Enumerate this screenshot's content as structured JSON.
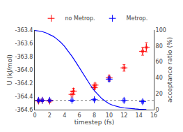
{
  "chart_data": {
    "type": "scatter",
    "title": "",
    "xlabel": "timestep (fs)",
    "ylabel": "U (kJ/mol)",
    "y2label": "acceptance ratio (%)",
    "xlim": [
      0,
      16
    ],
    "xticks": [
      0,
      2,
      4,
      6,
      8,
      10,
      12,
      14,
      16
    ],
    "ylim": [
      -364.6,
      -363.4
    ],
    "yticks": [
      -364.6,
      -364.4,
      -364.2,
      {
        "value": -364.0,
        "label": "-364.0"
      },
      -363.8,
      -363.6,
      -363.4
    ],
    "y2lim": [
      0,
      100
    ],
    "y2ticks": [
      0,
      20,
      40,
      60,
      80,
      100
    ],
    "grid": false,
    "legend": "top",
    "hlines": [
      {
        "y": -364.46,
        "color": "gray",
        "line_style": "dotted"
      }
    ],
    "series": [
      {
        "name": "no Metrop.",
        "type": "scatter",
        "color": "red",
        "marker": "+",
        "x": [
          0.5,
          1.0,
          2.0,
          5.0,
          5.2,
          8.0,
          8.1,
          10.0,
          12.0,
          14.5,
          15.0
        ],
        "values": [
          -364.47,
          -364.46,
          -364.47,
          -364.37,
          -364.32,
          -364.27,
          -364.23,
          -364.12,
          -363.97,
          -363.72,
          -363.66
        ],
        "yerr": [
          0.025,
          0.02,
          0.02,
          0.04,
          0.04,
          0.03,
          0.03,
          0.04,
          0.05,
          0.06,
          0.07
        ],
        "xerr": [
          0.15,
          0.15,
          0.15,
          0.15,
          0.15,
          0.15,
          0.15,
          0.15,
          0.15,
          0.15,
          0.15
        ]
      },
      {
        "name": "Metrop.",
        "type": "scatter",
        "color": "blue",
        "marker": "+",
        "x": [
          0.5,
          1.0,
          2.0,
          5.0,
          8.0,
          10.0,
          12.0,
          14.5
        ],
        "values": [
          -364.46,
          -364.46,
          -364.46,
          -364.46,
          -364.45,
          -364.14,
          -364.46,
          -364.48
        ],
        "yerr": [
          0.02,
          0.02,
          0.02,
          0.02,
          0.02,
          0.035,
          0.025,
          0.025
        ],
        "xerr": [
          0.15,
          0.15,
          0.15,
          0.15,
          0.15,
          0.15,
          0.15,
          0.15
        ]
      },
      {
        "type": "line",
        "color": "blue",
        "line_style": "solid",
        "axis": "y2",
        "x": [
          0.0,
          0.3,
          0.6,
          1.0,
          1.5,
          2.0,
          2.5,
          3.0,
          3.5,
          4.0,
          4.5,
          5.0,
          5.5,
          6.0,
          6.5,
          7.0,
          7.5,
          8.0,
          8.5,
          9.0,
          9.5,
          10.0,
          10.5,
          11.0,
          11.5,
          12.0,
          12.5,
          13.0,
          13.5,
          14.0,
          14.5,
          15.0
        ],
        "values": [
          99.5,
          99.2,
          98.8,
          98.0,
          96.5,
          94.5,
          92.0,
          88.5,
          84.5,
          79.5,
          73.5,
          67.0,
          60.0,
          52.5,
          45.0,
          37.5,
          30.5,
          24.0,
          18.5,
          14.0,
          10.5,
          7.5,
          5.5,
          4.0,
          3.0,
          2.2,
          1.6,
          1.2,
          0.9,
          0.6,
          0.4,
          0.2
        ]
      }
    ]
  }
}
